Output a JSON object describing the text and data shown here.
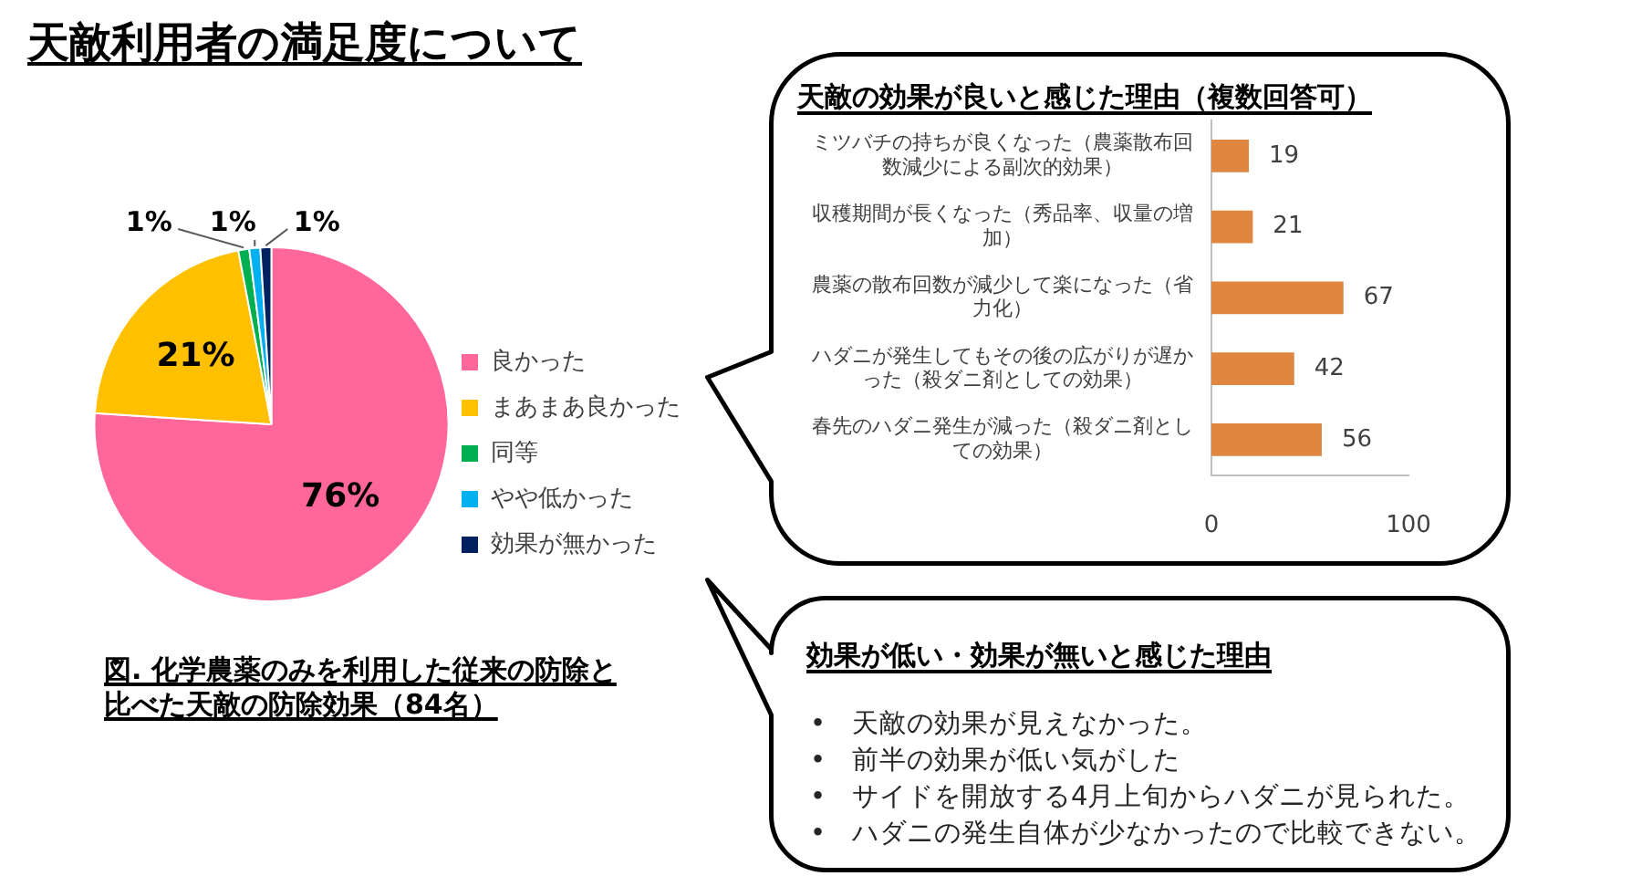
{
  "chart_data": [
    {
      "type": "pie",
      "title": "天敵利用者の満足度について",
      "categories": [
        "良かった",
        "まあまあ良かった",
        "同等",
        "やや低かった",
        "効果が無かった"
      ],
      "values": [
        76,
        21,
        1,
        1,
        1
      ],
      "colors": [
        "#ff6699",
        "#ffc000",
        "#00b050",
        "#00b0f0",
        "#002060"
      ],
      "value_labels": [
        "76%",
        "21%",
        "1%",
        "1%",
        "1%"
      ],
      "legend": "right",
      "annotations": [
        "図. 化学農薬のみを利用した従来の防除と比べた天敵の防除効果（84名）"
      ]
    },
    {
      "type": "bar",
      "orientation": "horizontal",
      "title": "天敵の効果が良いと感じた理由（複数回答可）",
      "categories": [
        "ミツバチの持ちが良くなった（農薬散布回数減少による副次的効果）",
        "収穫期間が長くなった（秀品率、収量の増加）",
        "農薬の散布回数が減少して楽になった（省力化）",
        "ハダニが発生してもその後の広がりが遅かった（殺ダニ剤としての効果）",
        "春先のハダニ発生が減った（殺ダニ剤としての効果）"
      ],
      "values": [
        19,
        21,
        67,
        42,
        56
      ],
      "color": "#df8641",
      "xlim": [
        0,
        100
      ],
      "xticks": [
        0,
        100
      ],
      "data_labels": true,
      "grid": false
    },
    {
      "type": "other",
      "title": "効果が低い・効果が無いと感じた理由",
      "annotations": [
        "•\t天敵の効果が見えなかった。",
        "•\t前半の効果が低い気がした",
        "•\tサイドを開放する4月上旬からハダニが見られた。",
        "•\tハダニの発生自体が少なかったので比較できない。"
      ]
    }
  ]
}
